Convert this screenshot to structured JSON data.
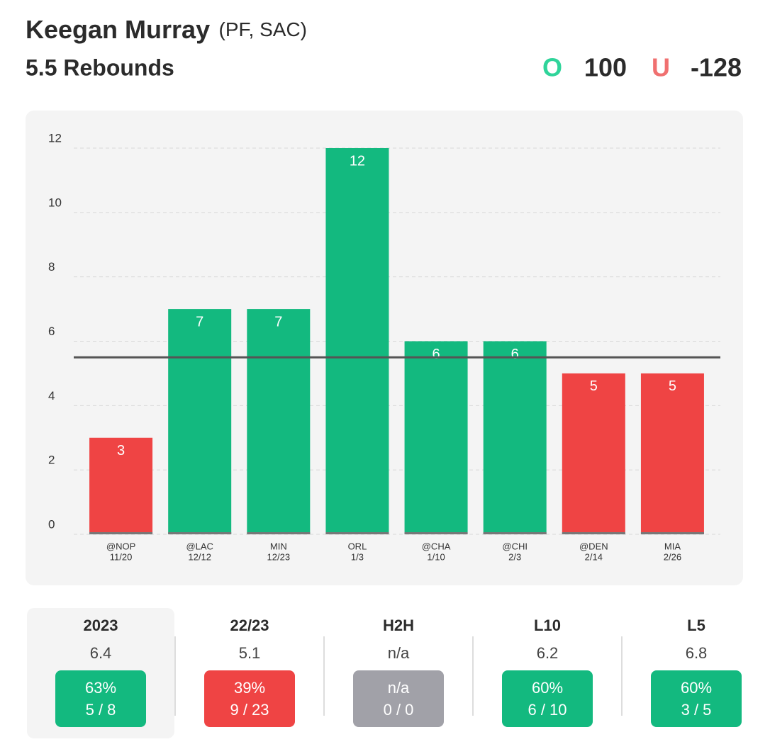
{
  "header": {
    "player": "Keegan Murray",
    "team": "(PF, SAC)",
    "market": "5.5 Rebounds",
    "over_label": "O",
    "over_odds": "100",
    "under_label": "U",
    "under_odds": "-128"
  },
  "chart_data": {
    "type": "bar",
    "categories": [
      "@NOP",
      "@LAC",
      "MIN",
      "ORL",
      "@CHA",
      "@CHI",
      "@DEN",
      "MIA"
    ],
    "dates": [
      "11/20",
      "12/12",
      "12/23",
      "1/3",
      "1/10",
      "2/3",
      "2/14",
      "2/26"
    ],
    "values": [
      3,
      7,
      7,
      12,
      6,
      6,
      5,
      5
    ],
    "line": 5.5,
    "over_color": "#13b97f",
    "under_color": "#ef4444",
    "ylim": [
      0,
      12
    ],
    "yticks": [
      0,
      2,
      4,
      6,
      8,
      10,
      12
    ],
    "grid": true
  },
  "stats": [
    {
      "label": "2023",
      "average": "6.4",
      "hit_rate": "63%",
      "record": "5 / 8",
      "color": "#13b97f"
    },
    {
      "label": "22/23",
      "average": "5.1",
      "hit_rate": "39%",
      "record": "9 / 23",
      "color": "#ef4444"
    },
    {
      "label": "H2H",
      "average": "n/a",
      "hit_rate": "n/a",
      "record": "0 / 0",
      "color": "#a1a1a8"
    },
    {
      "label": "L10",
      "average": "6.2",
      "hit_rate": "60%",
      "record": "6 / 10",
      "color": "#13b97f"
    },
    {
      "label": "L5",
      "average": "6.8",
      "hit_rate": "60%",
      "record": "3 / 5",
      "color": "#13b97f"
    }
  ]
}
